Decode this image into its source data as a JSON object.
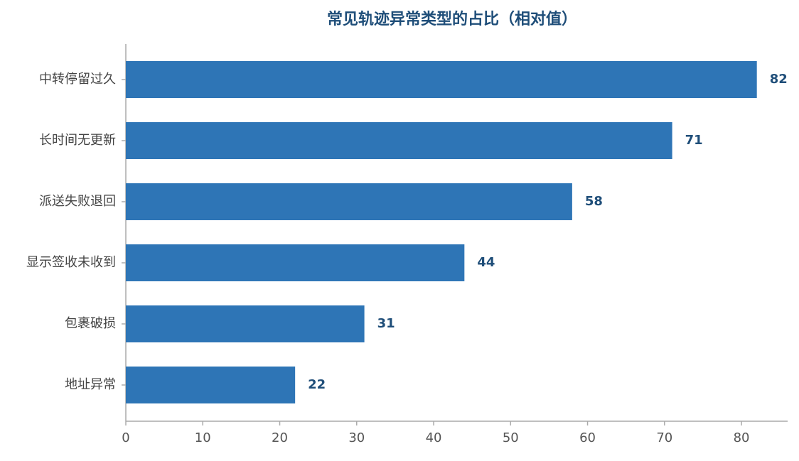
{
  "chart_data": {
    "type": "barh",
    "title": "常见轨迹异常类型的占比（相对值）",
    "categories": [
      "中转停留过久",
      "长时间无更新",
      "派送失败退回",
      "显示签收未收到",
      "包裹破损",
      "地址异常"
    ],
    "values": [
      82,
      71,
      58,
      44,
      31,
      22
    ],
    "color": "#2e75b6",
    "xlim": [
      0,
      86
    ],
    "xticks": [
      0,
      10,
      20,
      30,
      40,
      50,
      60,
      70,
      80
    ],
    "grid": false
  }
}
